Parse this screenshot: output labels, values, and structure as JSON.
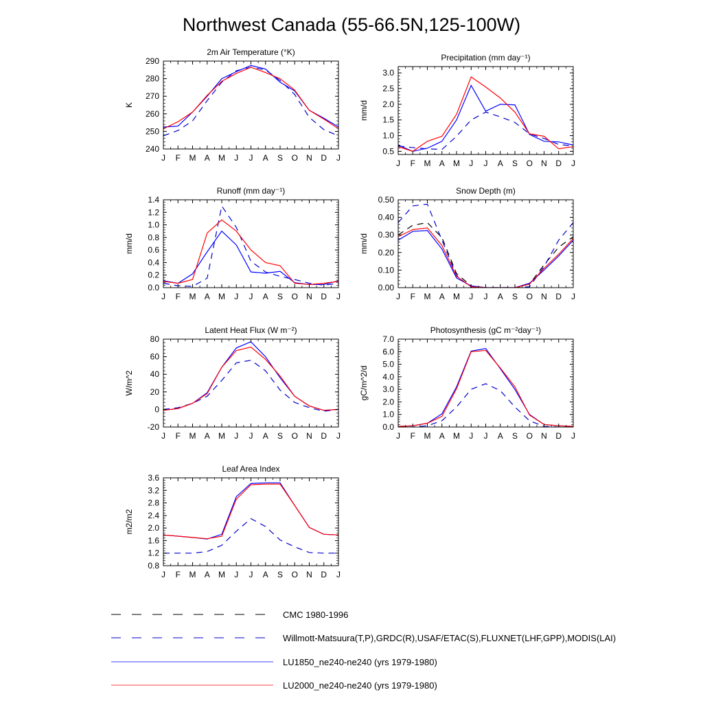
{
  "title": "Northwest Canada (55-66.5N,125-100W)",
  "months": [
    "J",
    "F",
    "M",
    "A",
    "M",
    "J",
    "J",
    "A",
    "S",
    "O",
    "N",
    "D",
    "J"
  ],
  "colors": {
    "obs_black": "#000000",
    "obs_blue": "#0000cc",
    "lu1850": "#0000ff",
    "lu2000": "#ff0000"
  },
  "legend": [
    {
      "label": "CMC 1980-1996",
      "color": "#000000",
      "dash": "dashed"
    },
    {
      "label": "Willmott-Matsuura(T,P),GRDC(R),USAF/ETAC(S),FLUXNET(LHF,GPP),MODIS(LAI)",
      "color": "#0000cc",
      "dash": "dashed"
    },
    {
      "label": "LU1850_ne240-ne240 (yrs 1979-1980)",
      "color": "#0000ff",
      "dash": "solid"
    },
    {
      "label": "LU2000_ne240-ne240 (yrs 1979-1980)",
      "color": "#ff0000",
      "dash": "solid"
    }
  ],
  "chart_data": [
    {
      "type": "line",
      "title": "2m Air Temperature (°K)",
      "ylabel": "K",
      "ylim": [
        240,
        290
      ],
      "yticks": [
        240,
        250,
        260,
        270,
        280,
        290
      ],
      "yticklabels": [
        "240",
        "250",
        "260",
        "270",
        "280",
        "290"
      ],
      "x": [
        "J",
        "F",
        "M",
        "A",
        "M",
        "J",
        "J",
        "A",
        "S",
        "O",
        "N",
        "D",
        "J"
      ],
      "series": [
        {
          "style": "obs_blue",
          "values": [
            247.5,
            250.5,
            256,
            267.5,
            278,
            284.5,
            286.5,
            285,
            279,
            271,
            258,
            251,
            247.5
          ]
        },
        {
          "style": "lu1850",
          "values": [
            252.5,
            253,
            261,
            270,
            280,
            284,
            287.5,
            285.5,
            278,
            273,
            262,
            257.5,
            252.5
          ]
        },
        {
          "style": "lu2000",
          "values": [
            251.5,
            255.5,
            261,
            270.5,
            278.5,
            283,
            286.5,
            283.5,
            280,
            273.5,
            262,
            257,
            251.5
          ]
        }
      ]
    },
    {
      "type": "line",
      "title": "Precipitation (mm day⁻¹)",
      "ylabel": "mm/d",
      "ylim": [
        0.4,
        3.2
      ],
      "yticks": [
        0.5,
        1.0,
        1.5,
        2.0,
        2.5,
        3.0
      ],
      "yticklabels": [
        "0.5",
        "1.0",
        "1.5",
        "2.0",
        "2.5",
        "3.0"
      ],
      "x": [
        "J",
        "F",
        "M",
        "A",
        "M",
        "J",
        "J",
        "A",
        "S",
        "O",
        "N",
        "D",
        "J"
      ],
      "series": [
        {
          "style": "obs_blue",
          "values": [
            0.67,
            0.62,
            0.58,
            0.56,
            0.98,
            1.5,
            1.75,
            1.6,
            1.42,
            1.06,
            0.91,
            0.72,
            0.67
          ]
        },
        {
          "style": "lu1850",
          "values": [
            0.7,
            0.5,
            0.6,
            0.82,
            1.5,
            2.6,
            1.78,
            2.0,
            1.98,
            1.04,
            0.82,
            0.8,
            0.7
          ]
        },
        {
          "style": "lu2000",
          "values": [
            0.65,
            0.5,
            0.82,
            0.98,
            1.68,
            2.87,
            2.55,
            2.2,
            1.75,
            1.06,
            0.98,
            0.58,
            0.65
          ]
        }
      ]
    },
    {
      "type": "line",
      "title": "Runoff (mm day⁻¹)",
      "ylabel": "mm/d",
      "ylim": [
        0,
        1.4
      ],
      "yticks": [
        0,
        0.2,
        0.4,
        0.6,
        0.8,
        1.0,
        1.2,
        1.4
      ],
      "yticklabels": [
        "0.0",
        "0.2",
        "0.4",
        "0.6",
        "0.8",
        "1.0",
        "1.2",
        "1.4"
      ],
      "x": [
        "J",
        "F",
        "M",
        "A",
        "M",
        "J",
        "J",
        "A",
        "S",
        "O",
        "N",
        "D",
        "J"
      ],
      "series": [
        {
          "style": "obs_blue",
          "values": [
            0.07,
            0.03,
            0.02,
            0.15,
            1.3,
            0.96,
            0.42,
            0.25,
            0.18,
            0.13,
            0.07,
            0.04,
            0.07
          ]
        },
        {
          "style": "lu1850",
          "values": [
            0.11,
            0.07,
            0.22,
            0.57,
            0.9,
            0.68,
            0.25,
            0.23,
            0.26,
            0.08,
            0.05,
            0.05,
            0.11
          ]
        },
        {
          "style": "lu2000",
          "values": [
            0.1,
            0.07,
            0.13,
            0.87,
            1.08,
            0.9,
            0.6,
            0.4,
            0.35,
            0.07,
            0.05,
            0.07,
            0.1
          ]
        }
      ]
    },
    {
      "type": "line",
      "title": "Snow Depth (m)",
      "ylabel": "mm/d",
      "ylim": [
        0,
        0.5
      ],
      "yticks": [
        0,
        0.1,
        0.2,
        0.3,
        0.4,
        0.5
      ],
      "yticklabels": [
        "0.00",
        "0.10",
        "0.20",
        "0.30",
        "0.40",
        "0.50"
      ],
      "x": [
        "J",
        "F",
        "M",
        "A",
        "M",
        "J",
        "J",
        "A",
        "S",
        "O",
        "N",
        "D",
        "J"
      ],
      "series": [
        {
          "style": "obs_black",
          "values": [
            0.3,
            0.355,
            0.37,
            0.285,
            0.08,
            0.01,
            0.0,
            0.0,
            0.0,
            0.02,
            0.13,
            0.23,
            0.29
          ]
        },
        {
          "style": "obs_blue",
          "values": [
            0.37,
            0.465,
            0.475,
            0.27,
            0.07,
            0.0,
            0.0,
            0.0,
            0.0,
            0.005,
            0.12,
            0.27,
            0.37
          ]
        },
        {
          "style": "lu1850",
          "values": [
            0.27,
            0.32,
            0.325,
            0.22,
            0.055,
            0.01,
            0.0,
            0.0,
            0.0,
            0.025,
            0.1,
            0.18,
            0.27
          ]
        },
        {
          "style": "lu2000",
          "values": [
            0.29,
            0.33,
            0.34,
            0.24,
            0.065,
            0.005,
            0.0,
            0.0,
            0.0,
            0.02,
            0.11,
            0.19,
            0.28
          ]
        }
      ]
    },
    {
      "type": "line",
      "title": "Latent Heat Flux (W m⁻²)",
      "ylabel": "W/m^2",
      "ylim": [
        -20,
        80
      ],
      "yticks": [
        -20,
        0,
        20,
        40,
        60,
        80
      ],
      "yticklabels": [
        "-20",
        "0",
        "20",
        "40",
        "60",
        "80"
      ],
      "x": [
        "J",
        "F",
        "M",
        "A",
        "M",
        "J",
        "J",
        "A",
        "S",
        "O",
        "N",
        "D",
        "J"
      ],
      "series": [
        {
          "style": "obs_blue",
          "values": [
            0,
            2,
            7,
            15,
            33,
            53,
            56,
            44,
            22,
            8,
            2,
            -2,
            0
          ]
        },
        {
          "style": "lu1850",
          "values": [
            -1,
            1,
            7,
            19,
            48,
            70,
            77,
            60,
            36,
            15,
            4,
            -1,
            0
          ]
        },
        {
          "style": "lu2000",
          "values": [
            -1,
            1,
            7,
            18,
            48,
            67,
            71,
            57,
            38,
            15,
            4,
            -1,
            0
          ]
        }
      ]
    },
    {
      "type": "line",
      "title": "Photosynthesis (gC m⁻²day⁻¹)",
      "ylabel": "gC/m^2/d",
      "ylim": [
        0,
        7
      ],
      "yticks": [
        0,
        1,
        2,
        3,
        4,
        5,
        6,
        7
      ],
      "yticklabels": [
        "0.0",
        "1.0",
        "2.0",
        "3.0",
        "4.0",
        "5.0",
        "6.0",
        "7.0"
      ],
      "x": [
        "J",
        "F",
        "M",
        "A",
        "M",
        "J",
        "J",
        "A",
        "S",
        "O",
        "N",
        "D",
        "J"
      ],
      "series": [
        {
          "style": "obs_blue",
          "values": [
            0.0,
            0.0,
            0.1,
            0.5,
            1.6,
            3.0,
            3.45,
            2.9,
            1.6,
            0.5,
            0.05,
            0.0,
            0.0
          ]
        },
        {
          "style": "lu1850",
          "values": [
            0.05,
            0.1,
            0.3,
            1.05,
            3.2,
            6.05,
            6.25,
            4.65,
            3.0,
            1.0,
            0.2,
            0.1,
            0.05
          ]
        },
        {
          "style": "lu2000",
          "values": [
            0.05,
            0.1,
            0.3,
            0.85,
            3.05,
            6.0,
            6.1,
            4.7,
            3.2,
            0.95,
            0.2,
            0.1,
            0.05
          ]
        }
      ]
    },
    {
      "type": "line",
      "title": "Leaf Area Index",
      "ylabel": "m2/m2",
      "ylim": [
        0.8,
        3.6
      ],
      "yticks": [
        0.8,
        1.2,
        1.6,
        2.0,
        2.4,
        2.8,
        3.2,
        3.6
      ],
      "yticklabels": [
        "0.8",
        "1.2",
        "1.6",
        "2.0",
        "2.4",
        "2.8",
        "3.2",
        "3.6"
      ],
      "x": [
        "J",
        "F",
        "M",
        "A",
        "M",
        "J",
        "J",
        "A",
        "S",
        "O",
        "N",
        "D",
        "J"
      ],
      "series": [
        {
          "style": "obs_blue",
          "values": [
            1.2,
            1.2,
            1.2,
            1.25,
            1.45,
            1.9,
            2.3,
            2.05,
            1.62,
            1.4,
            1.22,
            1.2,
            1.2
          ]
        },
        {
          "style": "lu1850",
          "values": [
            1.78,
            1.74,
            1.7,
            1.65,
            1.8,
            3.0,
            3.42,
            3.44,
            3.44,
            2.72,
            2.02,
            1.8,
            1.78
          ]
        },
        {
          "style": "lu2000",
          "values": [
            1.78,
            1.74,
            1.7,
            1.66,
            1.74,
            2.92,
            3.38,
            3.4,
            3.4,
            2.72,
            2.02,
            1.8,
            1.78
          ]
        }
      ]
    }
  ]
}
